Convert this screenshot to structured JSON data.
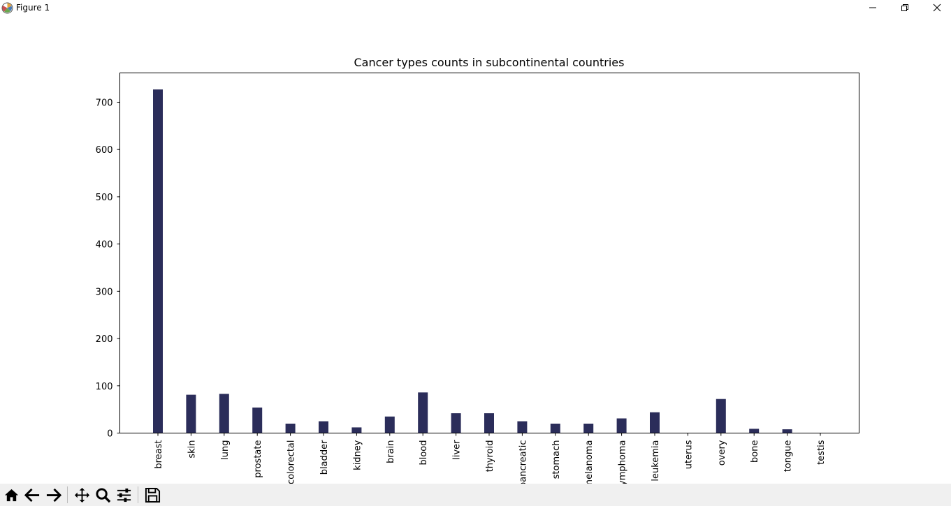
{
  "window": {
    "title": "Figure 1",
    "icons": {
      "app": "matplotlib-logo-icon",
      "minimize": "minimize-icon",
      "maximize": "restore-icon",
      "close": "close-icon"
    }
  },
  "toolbar": {
    "buttons": [
      {
        "name": "home-button",
        "icon": "home-icon"
      },
      {
        "name": "back-button",
        "icon": "arrow-left-icon"
      },
      {
        "name": "forward-button",
        "icon": "arrow-right-icon"
      },
      {
        "name": "pan-button",
        "icon": "move-icon"
      },
      {
        "name": "zoom-button",
        "icon": "zoom-icon"
      },
      {
        "name": "configure-subplots-button",
        "icon": "sliders-icon"
      },
      {
        "name": "save-button",
        "icon": "save-icon"
      }
    ]
  },
  "chart_data": {
    "type": "bar",
    "title": "Cancer types counts in subcontinental countries",
    "xlabel": "",
    "ylabel": "",
    "categories": [
      "breast",
      "skin",
      "lung",
      "prostate",
      "colorectal",
      "bladder",
      "kidney",
      "brain",
      "blood",
      "liver",
      "thyroid",
      "pancreatic",
      "stomach",
      "melanoma",
      "lymphoma",
      "leukemia",
      "uterus",
      "overy",
      "bone",
      "tongue",
      "testis"
    ],
    "values": [
      727,
      81,
      83,
      54,
      20,
      25,
      12,
      35,
      86,
      42,
      42,
      25,
      20,
      20,
      31,
      44,
      0,
      72,
      9,
      8,
      0
    ],
    "ylim": [
      0,
      762
    ],
    "yticks": [
      0,
      100,
      200,
      300,
      400,
      500,
      600,
      700
    ],
    "bar_color": "#2b2d5a",
    "grid": false,
    "legend": "none"
  }
}
